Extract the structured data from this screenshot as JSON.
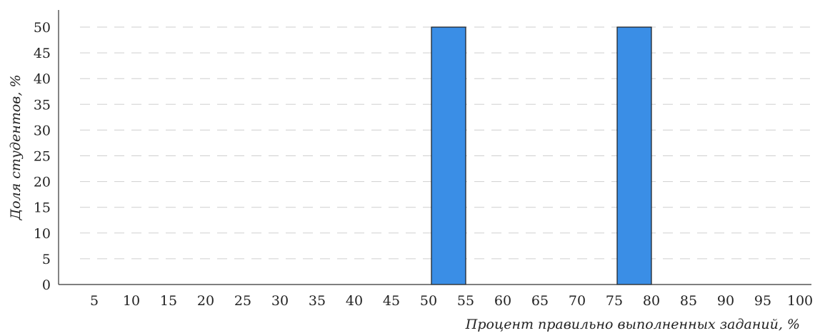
{
  "chart_data": {
    "type": "bar",
    "ylabel": "Доля студентов, %",
    "xlabel": "Процент правильно выполненных заданий, %",
    "ylim": [
      0,
      50
    ],
    "y_ticks": [
      0,
      5,
      10,
      15,
      20,
      25,
      30,
      35,
      40,
      45,
      50
    ],
    "x_ticks": [
      5,
      10,
      15,
      20,
      25,
      30,
      35,
      40,
      45,
      50,
      55,
      60,
      65,
      70,
      75,
      80,
      85,
      90,
      95,
      100
    ],
    "grid": "horizontal dashed",
    "bin_width": 5,
    "bars": [
      {
        "from": 50,
        "to": 55,
        "value": 50
      },
      {
        "from": 75,
        "to": 80,
        "value": 50
      }
    ],
    "bar_color": "#3a8ee6"
  }
}
